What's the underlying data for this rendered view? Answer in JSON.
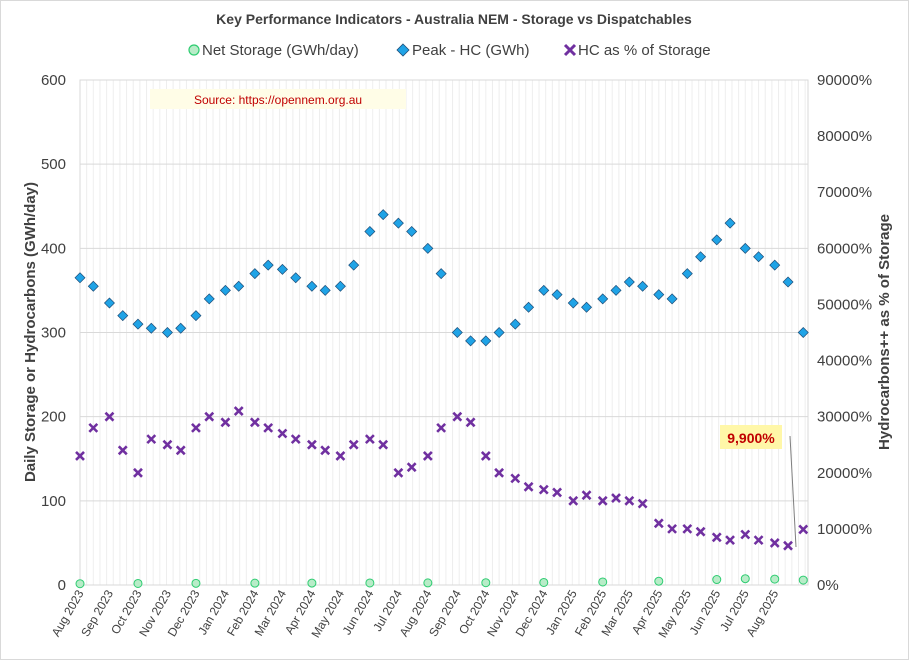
{
  "chart_data": {
    "type": "scatter",
    "title": "Key Performance Indicators - Australia NEM - Storage vs Dispatchables",
    "source_note": "Source:  https://opennem.org.au",
    "ylabel": "Daily Storage or Hydrocarbons (GWh/day)",
    "y2label": "Hydrocarbons++ as % of Storage",
    "ylim": [
      0,
      600
    ],
    "y2lim": [
      0,
      900000
    ],
    "yticks": [
      "0",
      "100",
      "200",
      "300",
      "400",
      "500",
      "600"
    ],
    "y2ticks": [
      "0%",
      "10000%",
      "20000%",
      "30000%",
      "40000%",
      "50000%",
      "60000%",
      "70000%",
      "80000%",
      "90000%"
    ],
    "x_range": [
      "2023-08-01",
      "2025-09-05"
    ],
    "grid": true,
    "legend_position": "top",
    "months": [
      "Aug 2023",
      "Sep 2023",
      "Oct 2023",
      "Nov 2023",
      "Dec 2023",
      "Jan 2024",
      "Feb 2024",
      "Mar 2024",
      "Apr 2024",
      "May 2024",
      "Jun 2024",
      "Jul 2024",
      "Aug 2024",
      "Sep 2024",
      "Oct 2024",
      "Nov 2024",
      "Dec 2024",
      "Jan 2025",
      "Feb 2025",
      "Mar 2025",
      "Apr 2025",
      "May 2025",
      "Jun 2025",
      "Jul 2025",
      "Aug 2025"
    ],
    "callout": "9,900%",
    "series": [
      {
        "name": "Net Storage (GWh/day)",
        "axis": "left",
        "marker": "circle",
        "color": "#2ecc71",
        "fill": "#b8ecc8",
        "data": [
          [
            "2023-08-01",
            1.5
          ],
          [
            "2023-10-01",
            1.8
          ],
          [
            "2023-12-01",
            2.0
          ],
          [
            "2024-02-01",
            2.2
          ],
          [
            "2024-04-01",
            2.3
          ],
          [
            "2024-06-01",
            2.4
          ],
          [
            "2024-08-01",
            2.5
          ],
          [
            "2024-10-01",
            2.7
          ],
          [
            "2024-12-01",
            3.0
          ],
          [
            "2025-02-01",
            3.6
          ],
          [
            "2025-04-01",
            4.5
          ],
          [
            "2025-06-01",
            6.5
          ],
          [
            "2025-07-01",
            7.5
          ],
          [
            "2025-08-01",
            7.0
          ],
          [
            "2025-08-31",
            5.8
          ]
        ]
      },
      {
        "name": "Peak - HC (GWh)",
        "axis": "left",
        "marker": "diamond",
        "color": "#1e4e79",
        "fill": "#1fa3e6",
        "data": [
          [
            "2023-08-01",
            365
          ],
          [
            "2023-08-15",
            355
          ],
          [
            "2023-09-01",
            335
          ],
          [
            "2023-09-15",
            320
          ],
          [
            "2023-10-01",
            310
          ],
          [
            "2023-10-15",
            305
          ],
          [
            "2023-11-01",
            300
          ],
          [
            "2023-11-15",
            305
          ],
          [
            "2023-12-01",
            320
          ],
          [
            "2023-12-15",
            340
          ],
          [
            "2024-01-01",
            350
          ],
          [
            "2024-01-15",
            355
          ],
          [
            "2024-02-01",
            370
          ],
          [
            "2024-02-15",
            380
          ],
          [
            "2024-03-01",
            375
          ],
          [
            "2024-03-15",
            365
          ],
          [
            "2024-04-01",
            355
          ],
          [
            "2024-04-15",
            350
          ],
          [
            "2024-05-01",
            355
          ],
          [
            "2024-05-15",
            380
          ],
          [
            "2024-06-01",
            420
          ],
          [
            "2024-06-15",
            440
          ],
          [
            "2024-07-01",
            430
          ],
          [
            "2024-07-15",
            420
          ],
          [
            "2024-08-01",
            400
          ],
          [
            "2024-08-15",
            370
          ],
          [
            "2024-09-01",
            300
          ],
          [
            "2024-09-15",
            290
          ],
          [
            "2024-10-01",
            290
          ],
          [
            "2024-10-15",
            300
          ],
          [
            "2024-11-01",
            310
          ],
          [
            "2024-11-15",
            330
          ],
          [
            "2024-12-01",
            350
          ],
          [
            "2024-12-15",
            345
          ],
          [
            "2025-01-01",
            335
          ],
          [
            "2025-01-15",
            330
          ],
          [
            "2025-02-01",
            340
          ],
          [
            "2025-02-15",
            350
          ],
          [
            "2025-03-01",
            360
          ],
          [
            "2025-03-15",
            355
          ],
          [
            "2025-04-01",
            345
          ],
          [
            "2025-04-15",
            340
          ],
          [
            "2025-05-01",
            370
          ],
          [
            "2025-05-15",
            390
          ],
          [
            "2025-06-01",
            410
          ],
          [
            "2025-06-15",
            430
          ],
          [
            "2025-07-01",
            400
          ],
          [
            "2025-07-15",
            390
          ],
          [
            "2025-08-01",
            380
          ],
          [
            "2025-08-15",
            360
          ],
          [
            "2025-08-31",
            300
          ]
        ]
      },
      {
        "name": "HC  as % of Storage",
        "axis": "right",
        "marker": "x",
        "color": "#7030a0",
        "data": [
          [
            "2023-08-01",
            230000
          ],
          [
            "2023-08-15",
            280000
          ],
          [
            "2023-09-01",
            300000
          ],
          [
            "2023-09-15",
            240000
          ],
          [
            "2023-10-01",
            200000
          ],
          [
            "2023-10-15",
            260000
          ],
          [
            "2023-11-01",
            250000
          ],
          [
            "2023-11-15",
            240000
          ],
          [
            "2023-12-01",
            280000
          ],
          [
            "2023-12-15",
            300000
          ],
          [
            "2024-01-01",
            290000
          ],
          [
            "2024-01-15",
            310000
          ],
          [
            "2024-02-01",
            290000
          ],
          [
            "2024-02-15",
            280000
          ],
          [
            "2024-03-01",
            270000
          ],
          [
            "2024-03-15",
            260000
          ],
          [
            "2024-04-01",
            250000
          ],
          [
            "2024-04-15",
            240000
          ],
          [
            "2024-05-01",
            230000
          ],
          [
            "2024-05-15",
            250000
          ],
          [
            "2024-06-01",
            260000
          ],
          [
            "2024-06-15",
            250000
          ],
          [
            "2024-07-01",
            200000
          ],
          [
            "2024-07-15",
            210000
          ],
          [
            "2024-08-01",
            230000
          ],
          [
            "2024-08-15",
            280000
          ],
          [
            "2024-09-01",
            300000
          ],
          [
            "2024-09-15",
            290000
          ],
          [
            "2024-10-01",
            230000
          ],
          [
            "2024-10-15",
            200000
          ],
          [
            "2024-11-01",
            190000
          ],
          [
            "2024-11-15",
            175000
          ],
          [
            "2024-12-01",
            170000
          ],
          [
            "2024-12-15",
            165000
          ],
          [
            "2025-01-01",
            150000
          ],
          [
            "2025-01-15",
            160000
          ],
          [
            "2025-02-01",
            150000
          ],
          [
            "2025-02-15",
            155000
          ],
          [
            "2025-03-01",
            150000
          ],
          [
            "2025-03-15",
            145000
          ],
          [
            "2025-04-01",
            110000
          ],
          [
            "2025-04-15",
            100000
          ],
          [
            "2025-05-01",
            100000
          ],
          [
            "2025-05-15",
            95000
          ],
          [
            "2025-06-01",
            85000
          ],
          [
            "2025-06-15",
            80000
          ],
          [
            "2025-07-01",
            90000
          ],
          [
            "2025-07-15",
            80000
          ],
          [
            "2025-08-01",
            75000
          ],
          [
            "2025-08-15",
            70000
          ],
          [
            "2025-08-31",
            99000
          ]
        ]
      }
    ]
  }
}
